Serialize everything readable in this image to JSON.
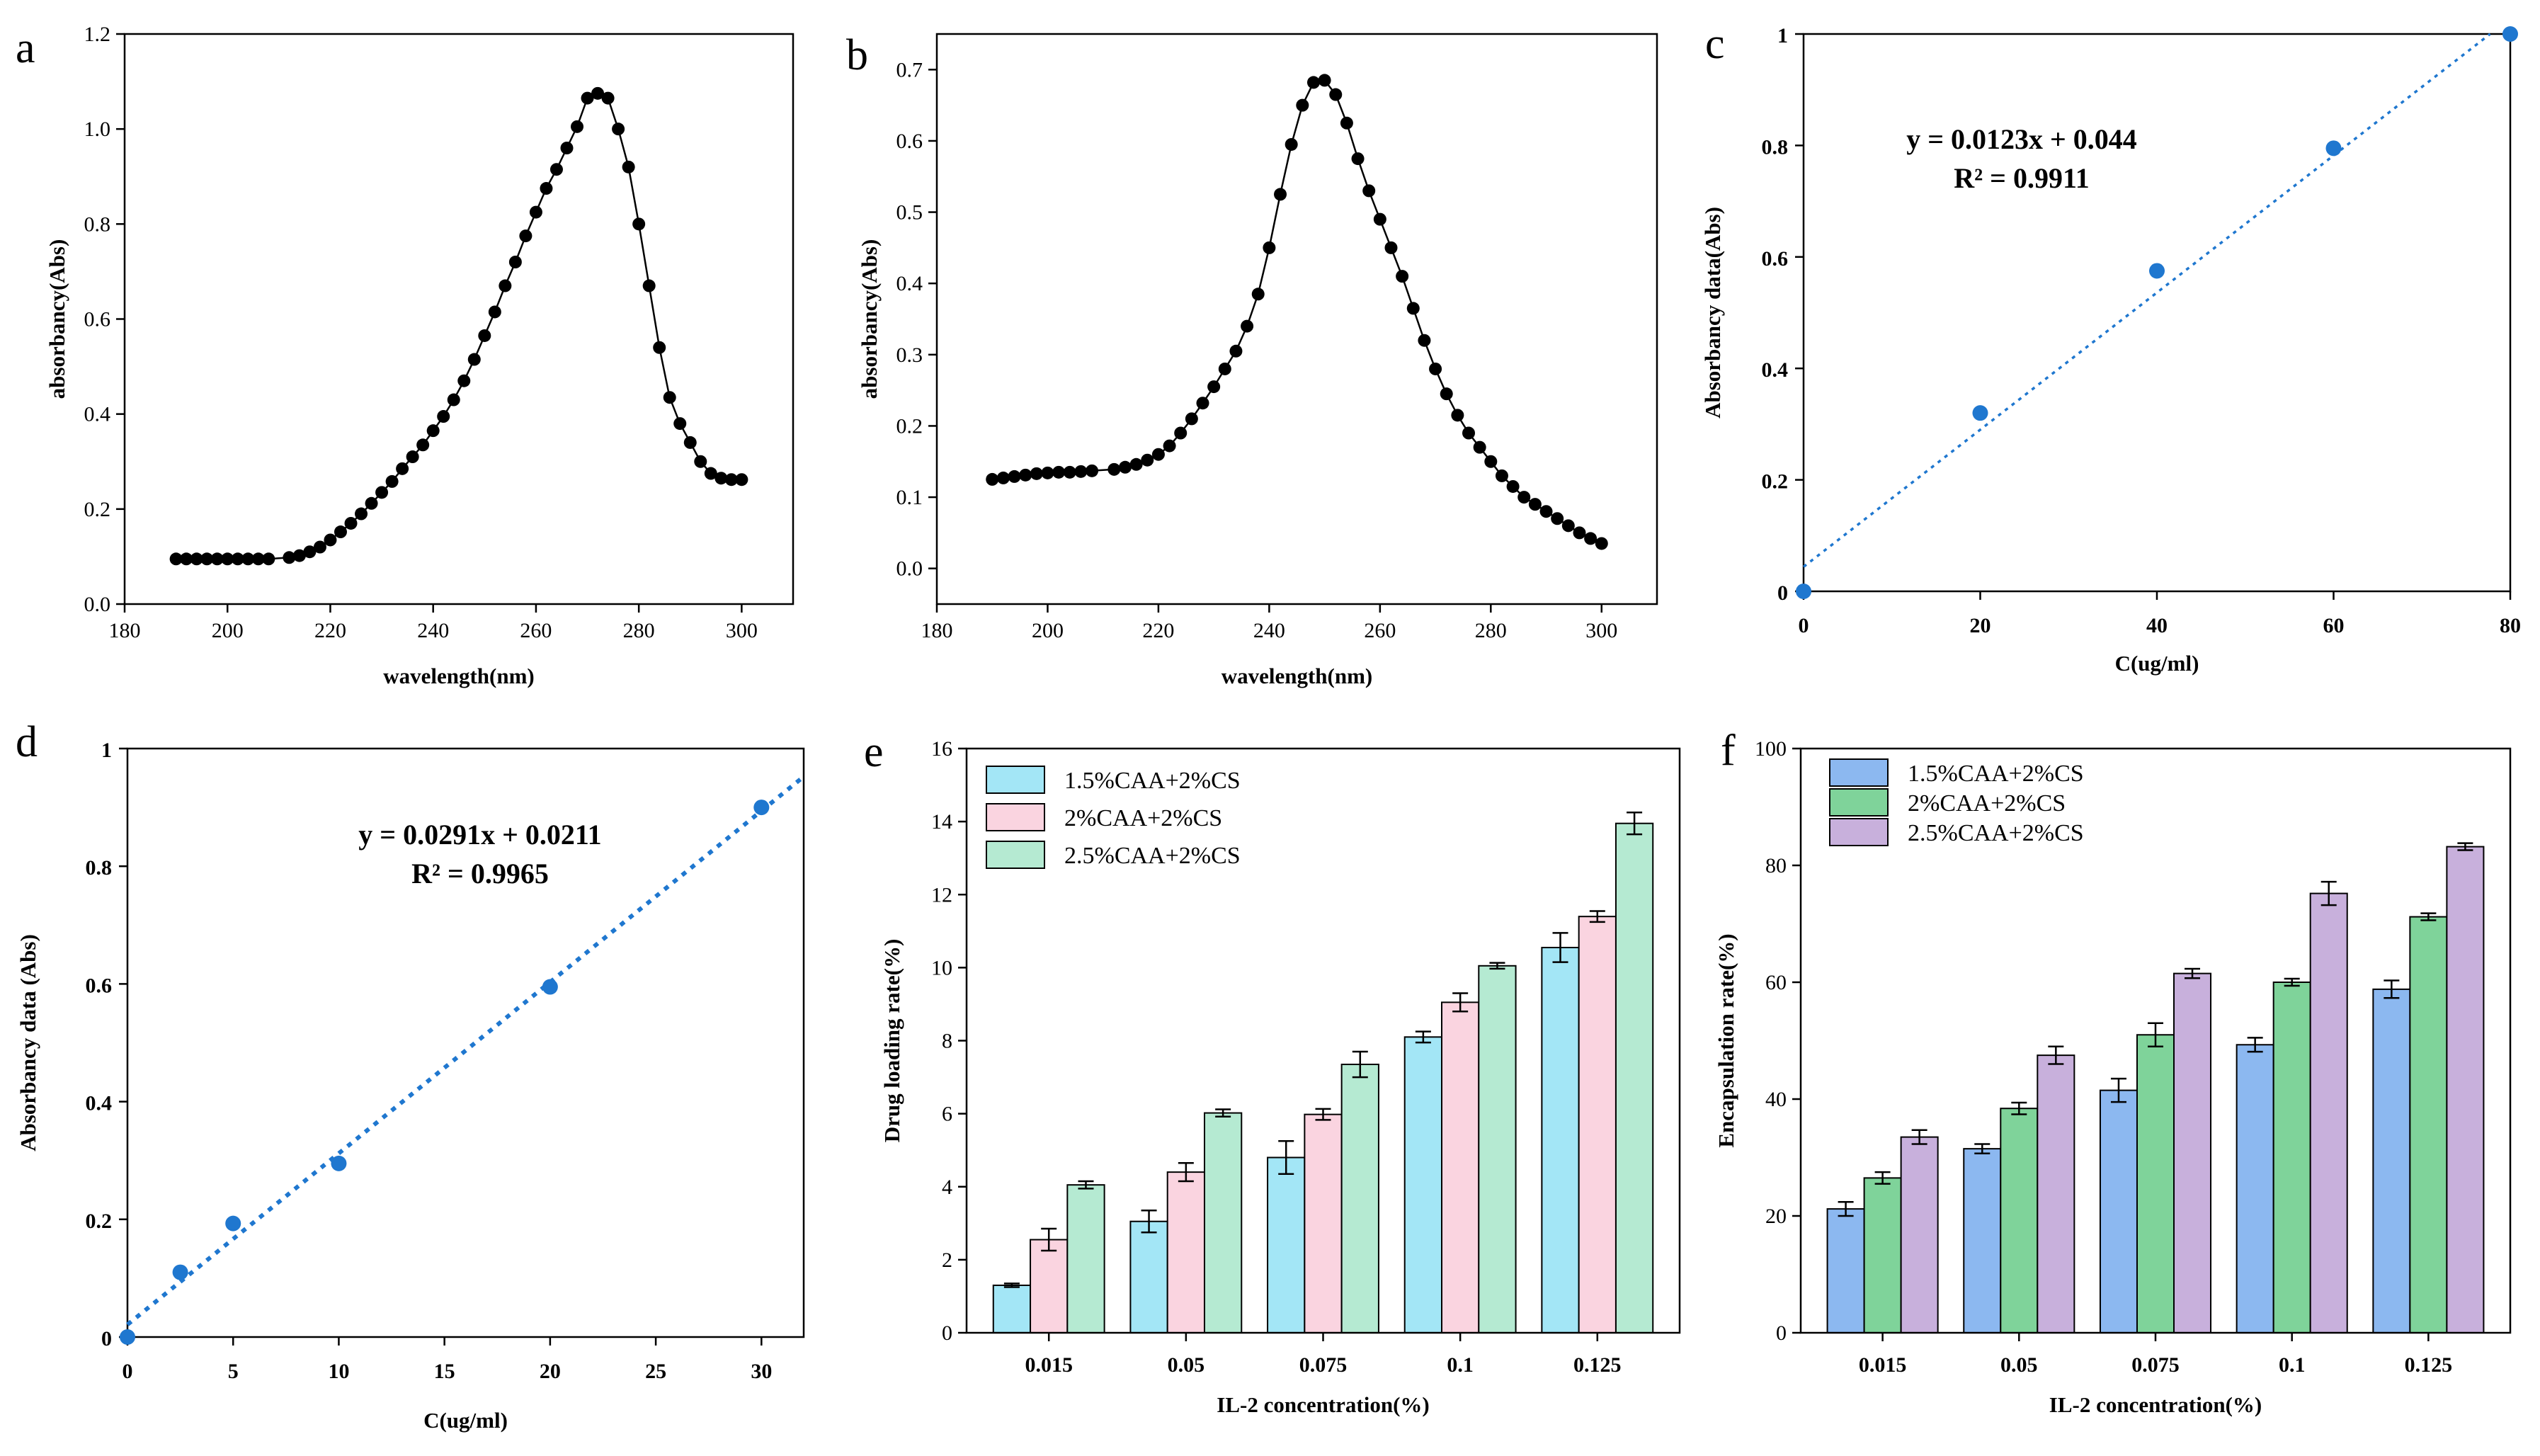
{
  "colors": {
    "black": "#000000",
    "blue": "#1f77cf",
    "cyan": "#a3e6f6",
    "pink": "#fad4e0",
    "mint": "#b5ead2",
    "bar_blue": "#8cb8f0",
    "bar_green": "#7fd39a",
    "bar_purple": "#c8b0dc"
  },
  "chart_data": [
    {
      "panel": "a",
      "type": "line",
      "xlabel": "wavelength(nm)",
      "ylabel": "absorbancy(Abs)",
      "xlim": [
        180,
        310
      ],
      "ylim": [
        0,
        1.2
      ],
      "xticks": [
        180,
        200,
        220,
        240,
        260,
        280,
        300
      ],
      "yticks": [
        0.0,
        0.2,
        0.4,
        0.6,
        0.8,
        1.0,
        1.2
      ],
      "ytick_labels": [
        "0.0",
        "0.2",
        "0.4",
        "0.6",
        "0.8",
        "1.0",
        "1.2"
      ],
      "x": [
        190,
        192,
        194,
        196,
        198,
        200,
        202,
        204,
        206,
        208,
        212,
        214,
        216,
        218,
        220,
        222,
        224,
        226,
        228,
        230,
        232,
        234,
        236,
        238,
        240,
        242,
        244,
        246,
        248,
        250,
        252,
        254,
        256,
        258,
        260,
        262,
        264,
        266,
        268,
        270,
        272,
        274,
        276,
        278,
        280,
        282,
        284,
        286,
        288,
        290,
        292,
        294,
        296,
        298,
        300
      ],
      "y": [
        0.095,
        0.095,
        0.095,
        0.095,
        0.095,
        0.095,
        0.095,
        0.095,
        0.095,
        0.095,
        0.098,
        0.102,
        0.11,
        0.12,
        0.135,
        0.152,
        0.17,
        0.19,
        0.212,
        0.235,
        0.258,
        0.285,
        0.31,
        0.335,
        0.365,
        0.395,
        0.43,
        0.47,
        0.515,
        0.565,
        0.615,
        0.67,
        0.72,
        0.775,
        0.825,
        0.875,
        0.915,
        0.96,
        1.005,
        1.065,
        1.075,
        1.065,
        1.0,
        0.92,
        0.8,
        0.67,
        0.54,
        0.435,
        0.38,
        0.34,
        0.3,
        0.275,
        0.265,
        0.262,
        0.262
      ]
    },
    {
      "panel": "b",
      "type": "line",
      "xlabel": "wavelength(nm)",
      "ylabel": "absorbancy(Abs)",
      "xlim": [
        180,
        310
      ],
      "ylim": [
        -0.05,
        0.75
      ],
      "xticks": [
        180,
        200,
        220,
        240,
        260,
        280,
        300
      ],
      "yticks": [
        0.0,
        0.1,
        0.2,
        0.3,
        0.4,
        0.5,
        0.6,
        0.7
      ],
      "ytick_labels": [
        "0.0",
        "0.1",
        "0.2",
        "0.3",
        "0.4",
        "0.5",
        "0.6",
        "0.7"
      ],
      "x": [
        190,
        192,
        194,
        196,
        198,
        200,
        202,
        204,
        206,
        208,
        212,
        214,
        216,
        218,
        220,
        222,
        224,
        226,
        228,
        230,
        232,
        234,
        236,
        238,
        240,
        242,
        244,
        246,
        248,
        250,
        252,
        254,
        256,
        258,
        260,
        262,
        264,
        266,
        268,
        270,
        272,
        274,
        276,
        278,
        280,
        282,
        284,
        286,
        288,
        290,
        292,
        294,
        296,
        298,
        300
      ],
      "y": [
        0.125,
        0.127,
        0.129,
        0.131,
        0.133,
        0.134,
        0.135,
        0.135,
        0.136,
        0.137,
        0.139,
        0.142,
        0.146,
        0.152,
        0.16,
        0.172,
        0.19,
        0.21,
        0.232,
        0.255,
        0.28,
        0.305,
        0.34,
        0.385,
        0.45,
        0.525,
        0.595,
        0.65,
        0.682,
        0.685,
        0.665,
        0.625,
        0.575,
        0.53,
        0.49,
        0.45,
        0.41,
        0.365,
        0.32,
        0.28,
        0.245,
        0.215,
        0.19,
        0.17,
        0.15,
        0.13,
        0.115,
        0.1,
        0.09,
        0.08,
        0.07,
        0.06,
        0.05,
        0.042,
        0.035
      ]
    },
    {
      "panel": "c",
      "type": "scatter",
      "xlabel": "C(ug/ml)",
      "ylabel": "Absorbancy  data(Abs)",
      "xlim": [
        0,
        80
      ],
      "ylim": [
        0,
        1
      ],
      "xticks": [
        0,
        20,
        40,
        60,
        80
      ],
      "yticks": [
        0,
        0.2,
        0.4,
        0.6,
        0.8,
        1
      ],
      "ytick_labels": [
        "0",
        "0.2",
        "0.4",
        "0.6",
        "0.8",
        "1"
      ],
      "x": [
        0,
        20,
        40,
        60,
        80
      ],
      "y": [
        0.0,
        0.32,
        0.575,
        0.795,
        1.0
      ],
      "trendline": {
        "slope": 0.0123,
        "intercept": 0.044
      },
      "equation": "y = 0.0123x + 0.044",
      "r_squared": "R² = 0.9911"
    },
    {
      "panel": "d",
      "type": "scatter",
      "xlabel": "C(ug/ml)",
      "ylabel": "Absorbancy data (Abs)",
      "xlim": [
        0,
        32
      ],
      "ylim": [
        0,
        1
      ],
      "xticks": [
        0,
        5,
        10,
        15,
        20,
        25,
        30
      ],
      "yticks": [
        0,
        0.2,
        0.4,
        0.6,
        0.8,
        1
      ],
      "ytick_labels": [
        "0",
        "0.2",
        "0.4",
        "0.6",
        "0.8",
        "1"
      ],
      "x": [
        0,
        2.5,
        5,
        10,
        20,
        30
      ],
      "y": [
        0.0,
        0.11,
        0.193,
        0.295,
        0.595,
        0.9
      ],
      "trendline": {
        "slope": 0.0291,
        "intercept": 0.0211
      },
      "equation": "y = 0.0291x + 0.0211",
      "r_squared": "R² = 0.9965"
    },
    {
      "panel": "e",
      "type": "bar",
      "xlabel": "IL-2 concentration(%)",
      "ylabel": "Drug loading rate(%)",
      "categories": [
        "0.015",
        "0.05",
        "0.075",
        "0.1",
        "0.125"
      ],
      "ylim": [
        0,
        16
      ],
      "yticks": [
        0,
        2,
        4,
        6,
        8,
        10,
        12,
        14,
        16
      ],
      "series": [
        {
          "name": "1.5%CAA+2%CS",
          "values": [
            1.3,
            3.05,
            4.8,
            8.1,
            10.55
          ],
          "errors": [
            0.05,
            0.3,
            0.45,
            0.15,
            0.4
          ]
        },
        {
          "name": "2%CAA+2%CS",
          "values": [
            2.55,
            4.4,
            5.98,
            9.05,
            11.4
          ],
          "errors": [
            0.3,
            0.25,
            0.15,
            0.25,
            0.15
          ]
        },
        {
          "name": "2.5%CAA+2%CS",
          "values": [
            4.05,
            6.02,
            7.35,
            10.05,
            13.95
          ],
          "errors": [
            0.1,
            0.1,
            0.35,
            0.08,
            0.3
          ]
        }
      ]
    },
    {
      "panel": "f",
      "type": "bar",
      "xlabel": "IL-2 concentration(%)",
      "ylabel": "Encapsulation rate(%)",
      "categories": [
        "0.015",
        "0.05",
        "0.075",
        "0.1",
        "0.125"
      ],
      "ylim": [
        0,
        100
      ],
      "yticks": [
        0,
        20,
        40,
        60,
        80,
        100
      ],
      "series": [
        {
          "name": "1.5%CAA+2%CS",
          "values": [
            21.2,
            31.5,
            41.5,
            49.3,
            58.8
          ],
          "errors": [
            1.2,
            0.8,
            2.0,
            1.2,
            1.5
          ]
        },
        {
          "name": "2%CAA+2%CS",
          "values": [
            26.5,
            38.4,
            51.0,
            60.0,
            71.2
          ],
          "errors": [
            1.0,
            1.0,
            2.0,
            0.6,
            0.6
          ]
        },
        {
          "name": "2.5%CAA+2%CS",
          "values": [
            33.5,
            47.5,
            61.5,
            75.2,
            83.2
          ],
          "errors": [
            1.2,
            1.5,
            0.8,
            2.0,
            0.6
          ]
        }
      ]
    }
  ]
}
